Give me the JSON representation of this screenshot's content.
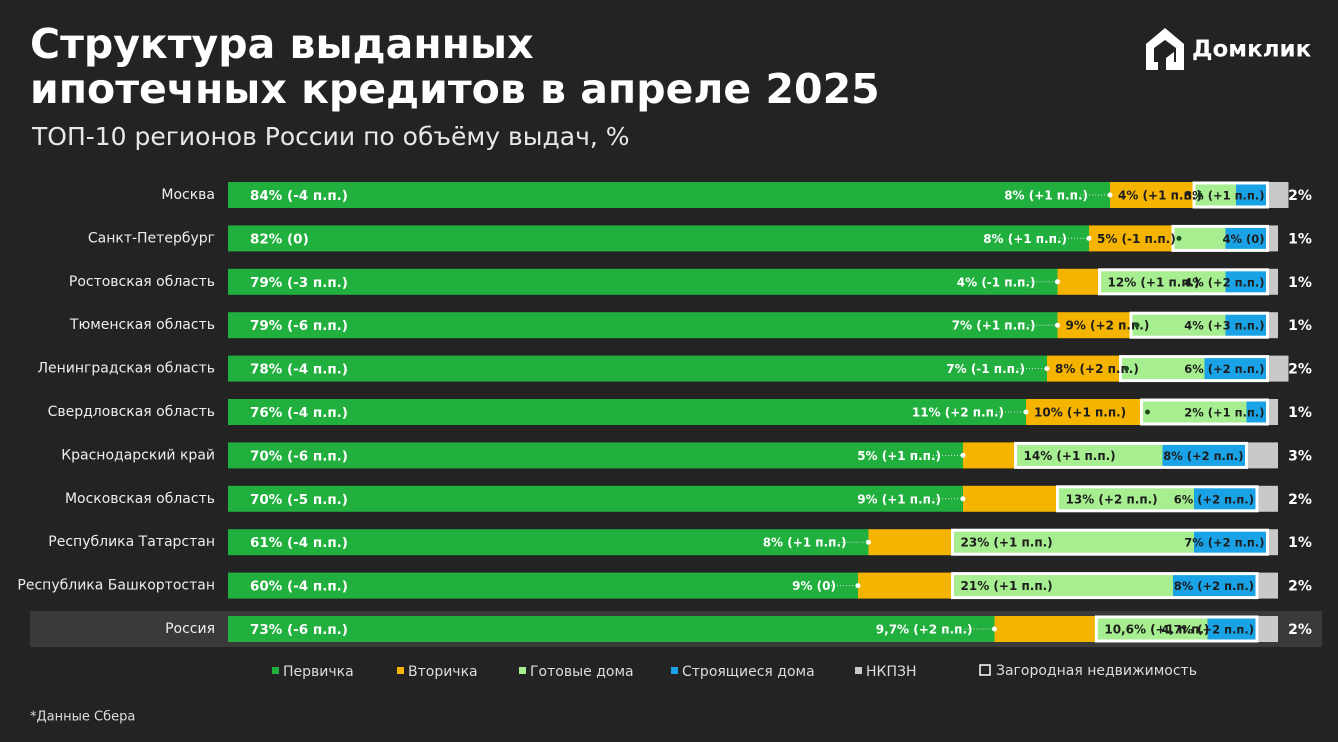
{
  "chart_data": {
    "type": "stacked-bar-horizontal",
    "title": [
      "Структура выданных",
      "ипотечных кредитов в апреле 2025"
    ],
    "subtitle": "ТОП-10 регионов России по объёму выдач, %",
    "brand": "Домклик",
    "note": "*Данные Сбера",
    "xlim": [
      0,
      100
    ],
    "categories": [
      "Москва",
      "Санкт-Петербург",
      "Ростовская область",
      "Тюменская область",
      "Ленинградская область",
      "Свердловская область",
      "Краснодарский край",
      "Московская область",
      "Республика Татарстан",
      "Республика Башкортостан",
      "Россия"
    ],
    "series": [
      {
        "name": "Первичка",
        "color": "#21b03e",
        "values": [
          84,
          82,
          79,
          79,
          78,
          76,
          70,
          70,
          61,
          60,
          73
        ],
        "value_labels": [
          "84% (-4 п.п.)",
          "82% (0)",
          "79% (-3 п.п.)",
          "79% (-6 п.п.)",
          "78% (-4 п.п.)",
          "76% (-4 п.п.)",
          "70% (-6 п.п.)",
          "70% (-5 п.п.)",
          "61% (-4 п.п.)",
          "60% (-4 п.п.)",
          "73% (-6 п.п.)"
        ]
      },
      {
        "name": "Вторичка",
        "color": "#f5b400",
        "values": [
          8,
          8,
          4,
          7,
          7,
          11,
          5,
          9,
          8,
          9,
          9.7
        ],
        "value_labels": [
          "8% (+1 п.п.)",
          "8% (+1 п.п.)",
          "4% (-1 п.п.)",
          "7% (+1 п.п.)",
          "7% (-1 п.п.)",
          "11% (+2 п.п.)",
          "5% (+1 п.п.)",
          "9% (+1 п.п.)",
          "8% (+1 п.п.)",
          "9% (0)",
          "9,7% (+2 п.п.)"
        ]
      },
      {
        "name": "Готовые дома",
        "color": "#a6ee8f",
        "values": [
          4,
          5,
          12,
          9,
          8,
          10,
          14,
          13,
          23,
          21,
          10.6
        ],
        "value_labels": [
          "4% (+1 п.п.)",
          "5% (-1 п.п.)",
          "12% (+1 п.п.)",
          "9% (+2 п.п.)",
          "8% (+2 п.п.)",
          "10% (+1 п.п.)",
          "14% (+1 п.п.)",
          "13% (+2 п.п.)",
          "23% (+1 п.п.)",
          "21% (+1 п.п.)",
          "10,6% (+1 п.п.)"
        ]
      },
      {
        "name": "Строящиеся дома",
        "color": "#1aa2e6",
        "values": [
          3,
          4,
          4,
          4,
          6,
          2,
          8,
          6,
          7,
          8,
          4.7
        ],
        "value_labels": [
          "3% (+1 п.п.)",
          "4% (0)",
          "4% (+2 п.п.)",
          "4% (+3 п.п.)",
          "6% (+2 п.п.)",
          "2% (+1 п.п.)",
          "8% (+2 п.п.)",
          "6% (+2 п.п.)",
          "7% (+2 п.п.)",
          "8% (+2 п.п.)",
          "4,7% (+2 п.п.)"
        ]
      },
      {
        "name": "НКПЗН",
        "color": "#c9c9c9",
        "values": [
          2,
          1,
          1,
          1,
          2,
          1,
          3,
          2,
          1,
          2,
          2
        ],
        "value_labels": [
          "2%",
          "1%",
          "1%",
          "1%",
          "2%",
          "1%",
          "3%",
          "2%",
          "1%",
          "2%",
          "2%"
        ]
      }
    ],
    "outline": {
      "name": "Загородная недвижимость",
      "color": "#ffffff"
    }
  }
}
